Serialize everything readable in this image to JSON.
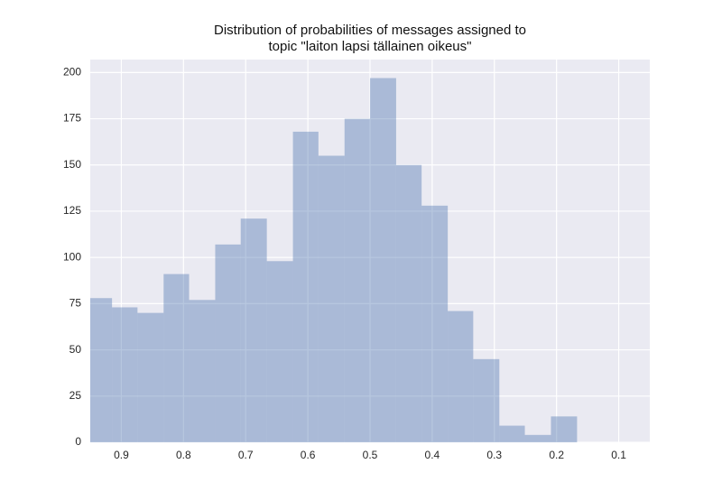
{
  "chart_data": {
    "type": "histogram",
    "title": [
      "Distribution of probabilities of messages assigned to",
      "topic \"laiton lapsi tällainen oikeus\""
    ],
    "bins": [
      0.167,
      0.209,
      0.251,
      0.292,
      0.334,
      0.375,
      0.417,
      0.458,
      0.5,
      0.541,
      0.583,
      0.624,
      0.666,
      0.708,
      0.749,
      0.791,
      0.832,
      0.874,
      0.915,
      0.957
    ],
    "values": [
      14,
      4,
      9,
      45,
      71,
      128,
      150,
      197,
      175,
      155,
      168,
      98,
      121,
      107,
      77,
      91,
      70,
      73,
      78
    ],
    "color": "#4c72b0",
    "xlim": [
      0.95,
      0.05
    ],
    "xticks": [
      0.9,
      0.8,
      0.7,
      0.6,
      0.5,
      0.4,
      0.3,
      0.2,
      0.1
    ],
    "ylim": [
      0,
      207
    ],
    "yticks": [
      0,
      25,
      50,
      75,
      100,
      125,
      150,
      175,
      200
    ],
    "grid": true
  }
}
